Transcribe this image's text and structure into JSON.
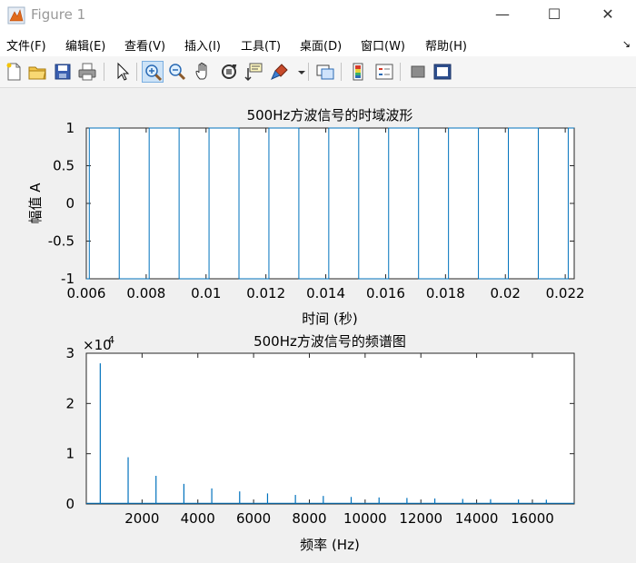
{
  "window": {
    "title": "Figure 1",
    "minimize_symbol": "—",
    "maximize_symbol": "☐",
    "close_symbol": "✕"
  },
  "menu": {
    "items": [
      "文件(F)",
      "编辑(E)",
      "查看(V)",
      "插入(I)",
      "工具(T)",
      "桌面(D)",
      "窗口(W)",
      "帮助(H)"
    ],
    "dock_arrow": "↘"
  },
  "toolbar": {
    "icons": [
      "new-figure-icon",
      "open-file-icon",
      "save-icon",
      "print-icon",
      "pointer-icon",
      "zoom-in-icon",
      "zoom-out-icon",
      "pan-hand-icon",
      "rotate-3d-icon",
      "data-cursor-icon",
      "brush-icon",
      "link-plot-icon",
      "colorbar-icon",
      "legend-icon",
      "hide-plot-tools-icon",
      "show-plot-tools-icon"
    ],
    "active": "zoom-in-icon"
  },
  "chart_data": [
    {
      "type": "line",
      "title": "500Hz方波信号的时域波形",
      "xlabel": "时间 (秒)",
      "ylabel": "幅值 A",
      "xlim": [
        0.006,
        0.0223
      ],
      "ylim": [
        -1,
        1
      ],
      "xticks": [
        0.006,
        0.008,
        0.01,
        0.012,
        0.014,
        0.016,
        0.018,
        0.02,
        0.022
      ],
      "xtick_labels": [
        "0.006",
        "0.008",
        "0.01",
        "0.012",
        "0.014",
        "0.016",
        "0.018",
        "0.02",
        "0.022"
      ],
      "yticks": [
        -1,
        -0.5,
        0,
        0.5,
        1
      ],
      "ytick_labels": [
        "-1",
        "-0.5",
        "0",
        "0.5",
        "1"
      ],
      "series": [
        {
          "frequency_hz": 500,
          "amplitude": 1,
          "x": [
            0.006,
            0.0061,
            0.0061,
            0.0071,
            0.0071,
            0.0081,
            0.0081,
            0.0091,
            0.0091,
            0.0101,
            0.0101,
            0.0111,
            0.0111,
            0.0121,
            0.0121,
            0.0131,
            0.0131,
            0.0141,
            0.0141,
            0.0151,
            0.0151,
            0.0161,
            0.0161,
            0.0171,
            0.0171,
            0.0181,
            0.0181,
            0.0191,
            0.0191,
            0.0201,
            0.0201,
            0.0211,
            0.0211,
            0.0221,
            0.0221,
            0.0223
          ],
          "y": [
            -1,
            -1,
            1,
            1,
            -1,
            -1,
            1,
            1,
            -1,
            -1,
            1,
            1,
            -1,
            -1,
            1,
            1,
            -1,
            -1,
            1,
            1,
            -1,
            -1,
            1,
            1,
            -1,
            -1,
            1,
            1,
            -1,
            -1,
            1,
            1,
            -1,
            -1,
            1,
            1
          ]
        }
      ],
      "grid": false
    },
    {
      "type": "line",
      "title": "500Hz方波信号的频谱图",
      "xlabel": "频率 (Hz)",
      "ylabel": "",
      "exponent_label": "×10",
      "exponent_power": "4",
      "xlim": [
        0,
        17500
      ],
      "ylim": [
        0,
        30000
      ],
      "xticks": [
        2000,
        4000,
        6000,
        8000,
        10000,
        12000,
        14000,
        16000
      ],
      "xtick_labels": [
        "2000",
        "4000",
        "6000",
        "8000",
        "10000",
        "12000",
        "14000",
        "16000"
      ],
      "yticks": [
        0,
        10000,
        20000,
        30000
      ],
      "ytick_labels": [
        "0",
        "1",
        "2",
        "3"
      ],
      "series": [
        {
          "x": [
            500,
            1500,
            2500,
            3500,
            4500,
            5500,
            6500,
            7500,
            8500,
            9500,
            10500,
            11500,
            12500,
            13500,
            14500,
            15500,
            16500
          ],
          "y": [
            28000,
            9300,
            5600,
            4000,
            3100,
            2500,
            2100,
            1800,
            1600,
            1400,
            1300,
            1200,
            1100,
            1000,
            950,
            900,
            850
          ]
        }
      ],
      "grid": false
    }
  ]
}
